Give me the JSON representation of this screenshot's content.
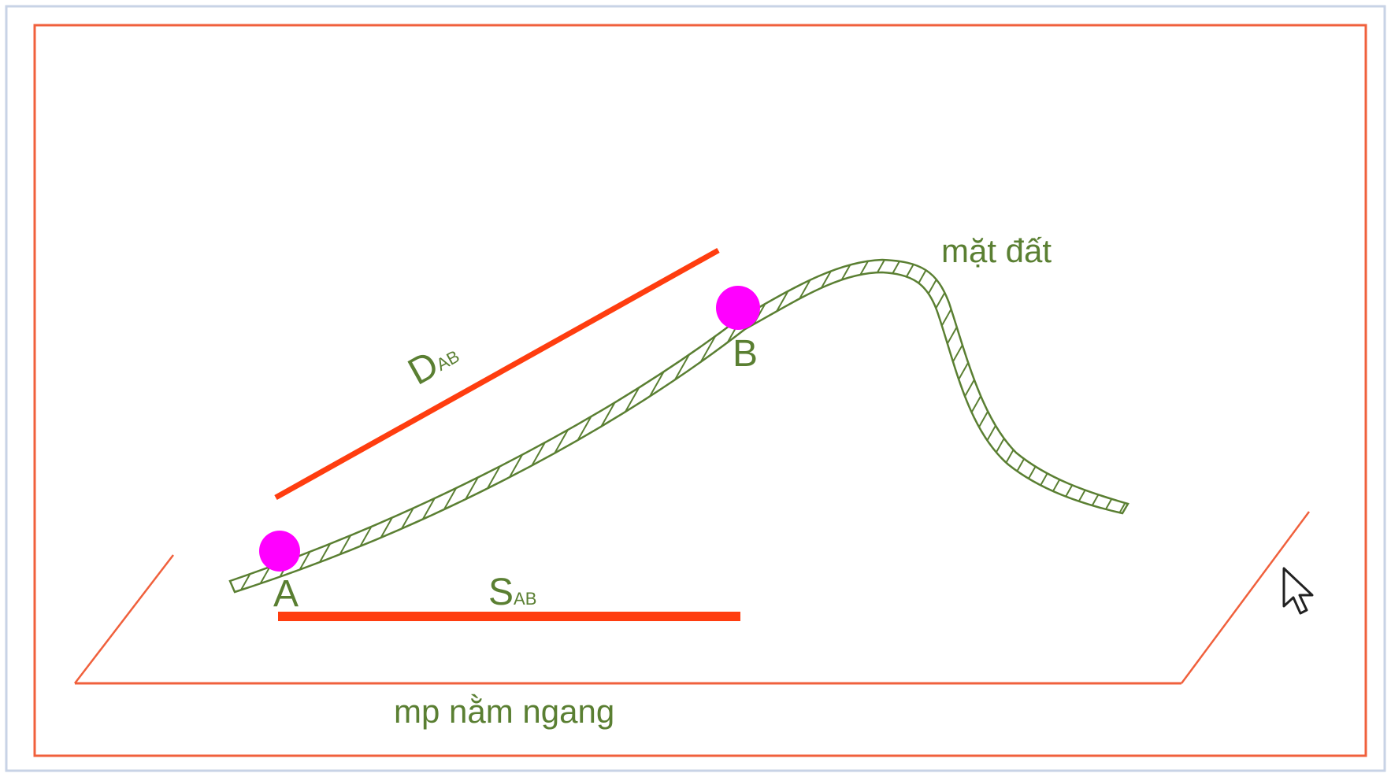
{
  "diagram": {
    "terrain_label": "mặt đất",
    "plane_label": "mp nằm ngang",
    "point_a_label": "A",
    "point_b_label": "B",
    "slope_distance": {
      "main": "D",
      "sub": "AB"
    },
    "horizontal_distance": {
      "main": "S",
      "sub": "AB"
    }
  },
  "colors": {
    "frame": "#f0603c",
    "measure_line": "#ff3d0f",
    "terrain": "#5a7f32",
    "point": "#ff00ff",
    "window_border": "#c8d3e6"
  },
  "icons": {
    "cursor": "mouse-pointer-icon"
  }
}
